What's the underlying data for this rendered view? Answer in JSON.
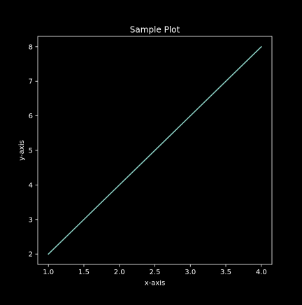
{
  "chart_data": {
    "type": "line",
    "title": "Sample Plot",
    "xlabel": "x-axis",
    "ylabel": "y-axis",
    "xlim": [
      0.85,
      4.15
    ],
    "ylim": [
      1.7,
      8.3
    ],
    "xticks": [
      1.0,
      1.5,
      2.0,
      2.5,
      3.0,
      3.5,
      4.0
    ],
    "xtick_labels": [
      "1.0",
      "1.5",
      "2.0",
      "2.5",
      "3.0",
      "3.5",
      "4.0"
    ],
    "yticks": [
      2,
      3,
      4,
      5,
      6,
      7,
      8
    ],
    "ytick_labels": [
      "2",
      "3",
      "4",
      "5",
      "6",
      "7",
      "8"
    ],
    "grid": false,
    "series": [
      {
        "x": [
          1,
          2,
          3,
          4
        ],
        "y": [
          2,
          4,
          6,
          8
        ]
      }
    ]
  },
  "colors": {
    "background": "#000000",
    "axes": "#ffffff",
    "line": "#8dd3c7"
  }
}
